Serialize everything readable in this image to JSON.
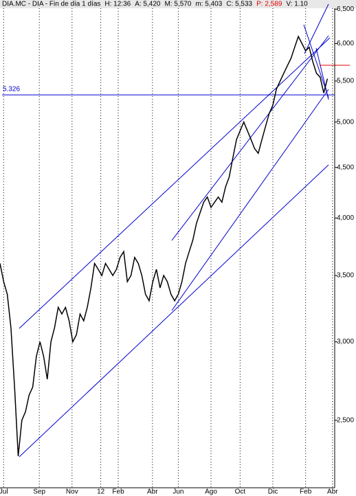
{
  "header": {
    "items": [
      {
        "text": "DIA.MC - DIA - Fin de día 1 días",
        "color": "#000000"
      },
      {
        "text": "H: 12:36",
        "color": "#000000"
      },
      {
        "text": "A: 5,420",
        "color": "#000000"
      },
      {
        "text": "M: 5,570",
        "color": "#000000"
      },
      {
        "text": "m: 5,403",
        "color": "#000000"
      },
      {
        "text": "C: 5,533",
        "color": "#000000"
      },
      {
        "text": "P: 2,589",
        "color": "#e00000"
      },
      {
        "text": "V: 1.10",
        "color": "#000000"
      }
    ]
  },
  "chart_data": {
    "type": "line",
    "log_scale": true,
    "vertical_grid": true,
    "color": "#000000",
    "x": [
      0,
      1,
      2,
      3,
      4,
      5,
      6,
      7,
      8,
      9,
      10,
      11,
      12,
      13,
      14,
      15,
      16,
      17,
      18,
      19,
      20,
      21,
      22,
      23,
      24,
      25,
      26,
      27,
      28,
      29,
      30,
      31,
      32,
      33,
      34,
      35,
      36,
      37,
      38,
      39,
      40,
      41,
      42,
      43,
      44,
      45,
      46,
      47,
      48,
      49,
      50,
      51,
      52,
      53,
      54,
      55,
      56,
      57,
      58,
      59,
      60,
      61,
      62,
      63,
      64,
      65,
      66,
      67,
      68,
      69,
      70,
      71,
      72,
      73,
      74,
      75,
      76,
      77,
      78,
      79,
      80,
      81,
      82,
      83,
      84,
      85,
      86,
      87,
      88,
      89,
      90
    ],
    "values": [
      3600,
      3450,
      3350,
      3100,
      2700,
      2300,
      2500,
      2550,
      2650,
      2700,
      2900,
      3000,
      2900,
      2750,
      3000,
      3100,
      3250,
      3200,
      3250,
      3150,
      3000,
      3050,
      3200,
      3150,
      3250,
      3400,
      3600,
      3550,
      3500,
      3600,
      3550,
      3500,
      3550,
      3650,
      3700,
      3450,
      3500,
      3650,
      3600,
      3500,
      3350,
      3300,
      3450,
      3550,
      3400,
      3500,
      3450,
      3350,
      3300,
      3350,
      3450,
      3600,
      3700,
      3800,
      3950,
      4050,
      4150,
      4200,
      4100,
      4150,
      4200,
      4150,
      4300,
      4400,
      4600,
      4800,
      4900,
      5000,
      4900,
      4800,
      4700,
      4650,
      4800,
      4950,
      5100,
      5200,
      5400,
      5500,
      5600,
      5700,
      5800,
      5950,
      6100,
      6000,
      5900,
      5950,
      5750,
      5600,
      5550,
      5350,
      5530
    ],
    "xlim": [
      0,
      92
    ],
    "xticks": [
      {
        "value": 1,
        "label": "Jul"
      },
      {
        "value": 10.8,
        "label": "Sep"
      },
      {
        "value": 19.8,
        "label": "Nov"
      },
      {
        "value": 27.7,
        "label": "12"
      },
      {
        "value": 32.5,
        "label": "Feb"
      },
      {
        "value": 41.9,
        "label": "Abr"
      },
      {
        "value": 49,
        "label": "Jun"
      },
      {
        "value": 58,
        "label": "Ago"
      },
      {
        "value": 66,
        "label": "Oct"
      },
      {
        "value": 75,
        "label": "Dic"
      },
      {
        "value": 84,
        "label": "Feb"
      },
      {
        "value": 91.4,
        "label": "Abr"
      }
    ],
    "ylim": [
      2130,
      6640
    ],
    "yticks": [
      {
        "value": 2500,
        "label": "2,500"
      },
      {
        "value": 3000,
        "label": "3,000"
      },
      {
        "value": 3500,
        "label": "3,500"
      },
      {
        "value": 4000,
        "label": "4,000"
      },
      {
        "value": 4500,
        "label": "4,500"
      },
      {
        "value": 5000,
        "label": "5,000"
      },
      {
        "value": 5500,
        "label": "5,500"
      },
      {
        "value": 6000,
        "label": "6,000"
      },
      {
        "value": 6500,
        "label": "6,500"
      }
    ],
    "reference_line": {
      "value": 5326,
      "label": "5.326",
      "color": "#0000cc"
    }
  }
}
